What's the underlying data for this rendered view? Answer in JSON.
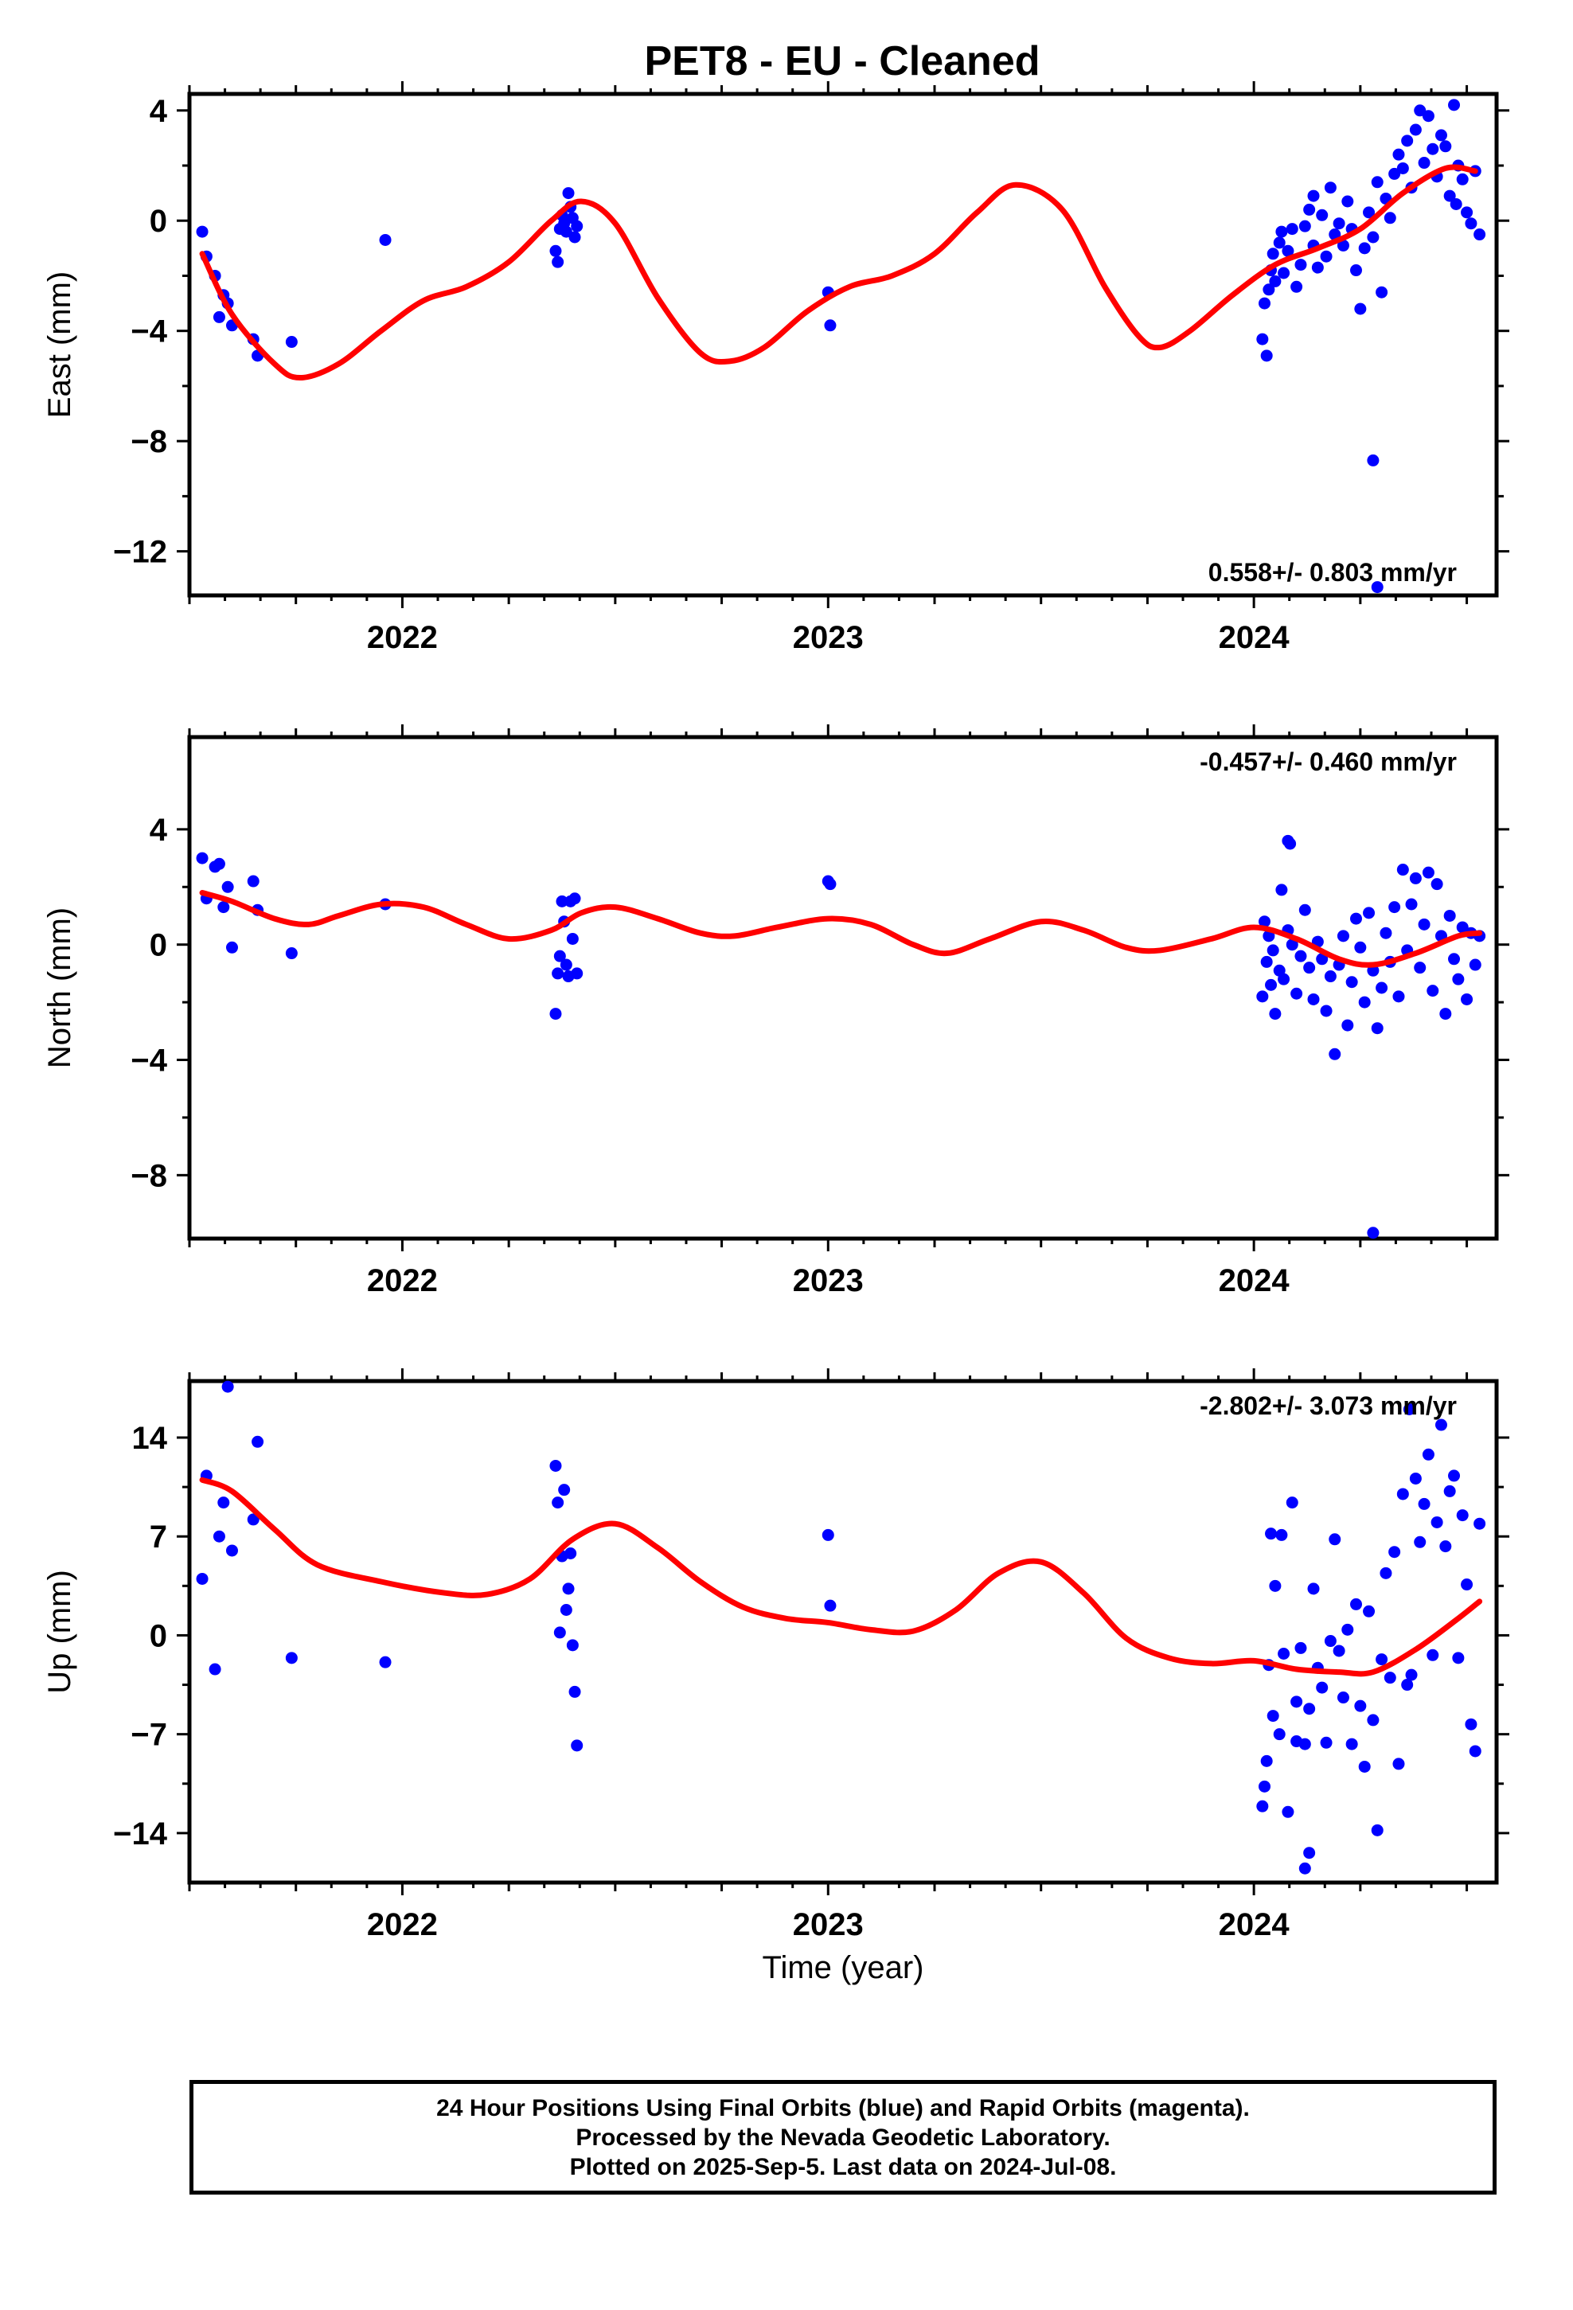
{
  "colors": {
    "points": "#0000ff",
    "model": "#ff0000",
    "axes": "#000000"
  },
  "caption": {
    "line1": "24 Hour Positions Using Final Orbits (blue) and Rapid Orbits (magenta).",
    "line2": "Processed by the Nevada Geodetic Laboratory.",
    "line3": "Plotted on 2025-Sep-5. Last data on 2024-Jul-08."
  },
  "chart_data": [
    {
      "type": "scatter",
      "title": "PET8  - EU - Cleaned",
      "ylabel": "East (mm)",
      "xlabel": "",
      "xlim": [
        2021.5,
        2024.57
      ],
      "ylim": [
        -13.6,
        4.6
      ],
      "yticks": [
        "4",
        "0",
        "-4",
        "-8",
        "-12"
      ],
      "xticks": [
        "2022",
        "2023",
        "2024"
      ],
      "annotation": "0.558+/- 0.803 mm/yr",
      "series": [
        {
          "points": {
            "x": [
              2021.53,
              2021.54,
              2021.56,
              2021.57,
              2021.58,
              2021.59,
              2021.6,
              2021.65,
              2021.66,
              2021.74,
              2021.96,
              2022.36,
              2022.365,
              2022.37,
              2022.375,
              2022.38,
              2022.385,
              2022.39,
              2022.395,
              2022.4,
              2022.405,
              2022.41,
              2023.0,
              2023.005,
              2024.02,
              2024.025,
              2024.03,
              2024.035,
              2024.04,
              2024.045,
              2024.05,
              2024.06,
              2024.065,
              2024.07,
              2024.08,
              2024.09,
              2024.1,
              2024.11,
              2024.12,
              2024.13,
              2024.14,
              2024.15,
              2024.16,
              2024.17,
              2024.18,
              2024.19,
              2024.2,
              2024.21,
              2024.22,
              2024.23,
              2024.24,
              2024.25,
              2024.26,
              2024.27,
              2024.28,
              2024.29,
              2024.3,
              2024.31,
              2024.32,
              2024.33,
              2024.34,
              2024.35,
              2024.36,
              2024.37,
              2024.38,
              2024.39,
              2024.4,
              2024.41,
              2024.42,
              2024.43,
              2024.44,
              2024.45,
              2024.46,
              2024.47,
              2024.48,
              2024.49,
              2024.5,
              2024.51,
              2024.52,
              2024.53,
              2024.14,
              2024.28,
              2024.29,
              2024.475
            ],
            "y": [
              -0.4,
              -1.3,
              -2.0,
              -3.5,
              -2.7,
              -3.0,
              -3.8,
              -4.3,
              -4.9,
              -4.4,
              -0.7,
              -1.1,
              -1.5,
              -0.3,
              0.2,
              -0.1,
              -0.4,
              1.0,
              0.5,
              0.1,
              -0.6,
              -0.2,
              -2.6,
              -3.8,
              -4.3,
              -3.0,
              -4.9,
              -2.5,
              -1.8,
              -1.2,
              -2.2,
              -0.8,
              -0.4,
              -1.9,
              -1.1,
              -0.3,
              -2.4,
              -1.6,
              -0.2,
              0.4,
              -0.9,
              -1.7,
              0.2,
              -1.3,
              1.2,
              -0.5,
              -0.1,
              -0.9,
              0.7,
              -0.3,
              -1.8,
              -3.2,
              -1.0,
              0.3,
              -0.6,
              1.4,
              -2.6,
              0.8,
              0.1,
              1.7,
              2.4,
              1.9,
              2.9,
              1.2,
              3.3,
              4.0,
              2.1,
              3.8,
              2.6,
              1.6,
              3.1,
              2.7,
              0.9,
              4.2,
              2.0,
              1.5,
              0.3,
              -0.1,
              1.8,
              -0.5,
              0.9,
              -8.7,
              -13.3,
              0.6
            ]
          }
        },
        {
          "model": {
            "x": [
              2021.53,
              2021.6,
              2021.7,
              2021.76,
              2021.85,
              2021.95,
              2022.05,
              2022.15,
              2022.25,
              2022.35,
              2022.42,
              2022.5,
              2022.6,
              2022.7,
              2022.77,
              2022.85,
              2022.95,
              2023.05,
              2023.15,
              2023.25,
              2023.35,
              2023.44,
              2023.55,
              2023.65,
              2023.73,
              2023.78,
              2023.85,
              2023.95,
              2024.05,
              2024.15,
              2024.25,
              2024.35,
              2024.45,
              2024.52
            ],
            "y": [
              -1.2,
              -3.4,
              -5.2,
              -5.7,
              -5.2,
              -4.0,
              -2.9,
              -2.4,
              -1.5,
              0.0,
              0.7,
              -0.1,
              -2.8,
              -4.8,
              -5.1,
              -4.6,
              -3.3,
              -2.4,
              -2.0,
              -1.2,
              0.3,
              1.3,
              0.4,
              -2.4,
              -4.2,
              -4.6,
              -4.0,
              -2.7,
              -1.6,
              -1.0,
              -0.3,
              1.0,
              1.9,
              1.8
            ]
          }
        }
      ]
    },
    {
      "type": "scatter",
      "title": "",
      "ylabel": "North (mm)",
      "xlabel": "",
      "xlim": [
        2021.5,
        2024.57
      ],
      "ylim": [
        -10.2,
        7.2
      ],
      "yticks": [
        "4",
        "0",
        "-4",
        "-8"
      ],
      "xticks": [
        "2022",
        "2023",
        "2024"
      ],
      "annotation": "-0.457+/- 0.460 mm/yr",
      "series": [
        {
          "points": {
            "x": [
              2021.53,
              2021.54,
              2021.56,
              2021.57,
              2021.58,
              2021.59,
              2021.6,
              2021.65,
              2021.66,
              2021.74,
              2021.96,
              2022.36,
              2022.365,
              2022.37,
              2022.375,
              2022.38,
              2022.385,
              2022.39,
              2022.395,
              2022.4,
              2022.405,
              2022.41,
              2023.0,
              2023.005,
              2024.02,
              2024.025,
              2024.03,
              2024.035,
              2024.04,
              2024.045,
              2024.05,
              2024.06,
              2024.065,
              2024.07,
              2024.08,
              2024.09,
              2024.1,
              2024.11,
              2024.12,
              2024.13,
              2024.14,
              2024.15,
              2024.16,
              2024.17,
              2024.18,
              2024.19,
              2024.2,
              2024.21,
              2024.22,
              2024.23,
              2024.24,
              2024.25,
              2024.26,
              2024.27,
              2024.28,
              2024.29,
              2024.3,
              2024.31,
              2024.32,
              2024.33,
              2024.34,
              2024.35,
              2024.36,
              2024.37,
              2024.38,
              2024.39,
              2024.4,
              2024.41,
              2024.42,
              2024.43,
              2024.44,
              2024.45,
              2024.46,
              2024.47,
              2024.48,
              2024.49,
              2024.5,
              2024.51,
              2024.52,
              2024.53,
              2024.08,
              2024.28,
              2024.085
            ],
            "y": [
              3.0,
              1.6,
              2.7,
              2.8,
              1.3,
              2.0,
              -0.1,
              2.2,
              1.2,
              -0.3,
              1.4,
              -2.4,
              -1.0,
              -0.4,
              1.5,
              0.8,
              -0.7,
              -1.1,
              1.5,
              0.2,
              1.6,
              -1.0,
              2.2,
              2.1,
              -1.8,
              0.8,
              -0.6,
              0.3,
              -1.4,
              -0.2,
              -2.4,
              -0.9,
              1.9,
              -1.2,
              0.5,
              0.0,
              -1.7,
              -0.4,
              1.2,
              -0.8,
              -1.9,
              0.1,
              -0.5,
              -2.3,
              -1.1,
              -3.8,
              -0.7,
              0.3,
              -2.8,
              -1.3,
              0.9,
              -0.1,
              -2.0,
              1.1,
              -0.9,
              -2.9,
              -1.5,
              0.4,
              -0.6,
              1.3,
              -1.8,
              2.6,
              -0.2,
              1.4,
              2.3,
              -0.8,
              0.7,
              2.5,
              -1.6,
              2.1,
              0.3,
              -2.4,
              1.0,
              -0.5,
              -1.2,
              0.6,
              -1.9,
              0.4,
              -0.7,
              0.3,
              3.6,
              -10.0,
              3.5
            ]
          }
        },
        {
          "model": {
            "x": [
              2021.53,
              2021.6,
              2021.7,
              2021.78,
              2021.85,
              2021.95,
              2022.05,
              2022.15,
              2022.25,
              2022.35,
              2022.42,
              2022.5,
              2022.6,
              2022.7,
              2022.78,
              2022.88,
              2023.0,
              2023.1,
              2023.2,
              2023.28,
              2023.38,
              2023.5,
              2023.6,
              2023.7,
              2023.78,
              2023.9,
              2024.0,
              2024.1,
              2024.2,
              2024.28,
              2024.38,
              2024.48,
              2024.53
            ],
            "y": [
              1.8,
              1.5,
              0.9,
              0.7,
              1.0,
              1.4,
              1.3,
              0.7,
              0.2,
              0.5,
              1.1,
              1.3,
              0.9,
              0.4,
              0.3,
              0.6,
              0.9,
              0.7,
              0.0,
              -0.3,
              0.2,
              0.8,
              0.5,
              -0.1,
              -0.2,
              0.2,
              0.6,
              0.2,
              -0.5,
              -0.7,
              -0.3,
              0.3,
              0.4
            ]
          }
        }
      ]
    },
    {
      "type": "scatter",
      "title": "",
      "ylabel": "Up (mm)",
      "xlabel": "Time (year)",
      "xlim": [
        2021.5,
        2024.57
      ],
      "ylim": [
        -17.5,
        18.0
      ],
      "yticks": [
        "14",
        "7",
        "0",
        "-7",
        "-14"
      ],
      "xticks": [
        "2022",
        "2023",
        "2024"
      ],
      "annotation": "-2.802+/- 3.073 mm/yr",
      "series": [
        {
          "points": {
            "x": [
              2021.53,
              2021.54,
              2021.56,
              2021.57,
              2021.58,
              2021.59,
              2021.6,
              2021.65,
              2021.66,
              2021.74,
              2021.96,
              2022.36,
              2022.365,
              2022.37,
              2022.375,
              2022.38,
              2022.385,
              2022.39,
              2022.395,
              2022.4,
              2022.405,
              2022.41,
              2023.0,
              2023.005,
              2024.02,
              2024.025,
              2024.03,
              2024.035,
              2024.04,
              2024.045,
              2024.05,
              2024.06,
              2024.065,
              2024.07,
              2024.08,
              2024.09,
              2024.1,
              2024.11,
              2024.12,
              2024.13,
              2024.14,
              2024.15,
              2024.16,
              2024.17,
              2024.18,
              2024.19,
              2024.2,
              2024.21,
              2024.22,
              2024.23,
              2024.24,
              2024.25,
              2024.26,
              2024.27,
              2024.28,
              2024.29,
              2024.3,
              2024.31,
              2024.32,
              2024.33,
              2024.34,
              2024.35,
              2024.36,
              2024.37,
              2024.38,
              2024.39,
              2024.4,
              2024.41,
              2024.42,
              2024.43,
              2024.44,
              2024.45,
              2024.46,
              2024.47,
              2024.48,
              2024.49,
              2024.5,
              2024.51,
              2024.52,
              2024.53,
              2024.12,
              2024.13,
              2024.1,
              2024.365
            ],
            "y": [
              4.0,
              11.3,
              -2.4,
              7.0,
              9.4,
              17.6,
              6.0,
              8.2,
              13.7,
              -1.6,
              -1.9,
              12.0,
              9.4,
              0.2,
              5.6,
              10.3,
              1.8,
              3.3,
              5.8,
              -0.7,
              -4.0,
              -7.8,
              7.1,
              2.1,
              -12.1,
              -10.7,
              -8.9,
              -2.1,
              7.2,
              -5.7,
              3.5,
              -7.0,
              7.1,
              -1.3,
              -12.5,
              9.4,
              -4.7,
              -0.9,
              -7.7,
              -5.2,
              3.3,
              -2.3,
              -3.7,
              -7.6,
              -0.4,
              6.8,
              -1.1,
              -4.4,
              0.4,
              -7.7,
              2.2,
              -5.0,
              -9.3,
              1.7,
              -6.0,
              -13.8,
              -1.7,
              4.4,
              -3.0,
              5.9,
              -9.1,
              10.0,
              -3.5,
              -2.8,
              11.1,
              6.6,
              9.3,
              12.8,
              -1.4,
              8.0,
              14.9,
              6.3,
              10.2,
              11.3,
              -1.6,
              8.5,
              3.6,
              -6.3,
              -8.2,
              7.9,
              -16.5,
              -15.4,
              -7.5,
              16.0
            ]
          }
        },
        {
          "model": {
            "x": [
              2021.53,
              2021.6,
              2021.7,
              2021.8,
              2021.95,
              2022.1,
              2022.2,
              2022.3,
              2022.4,
              2022.5,
              2022.6,
              2022.7,
              2022.8,
              2022.9,
              2023.0,
              2023.1,
              2023.2,
              2023.3,
              2023.4,
              2023.5,
              2023.6,
              2023.7,
              2023.8,
              2023.9,
              2024.0,
              2024.1,
              2024.2,
              2024.28,
              2024.38,
              2024.48,
              2024.53
            ],
            "y": [
              11.0,
              10.2,
              7.5,
              5.0,
              3.8,
              3.0,
              2.9,
              4.0,
              6.8,
              7.9,
              6.2,
              3.8,
              2.0,
              1.2,
              0.9,
              0.4,
              0.3,
              1.8,
              4.4,
              5.2,
              3.0,
              -0.2,
              -1.6,
              -2.0,
              -1.8,
              -2.4,
              -2.6,
              -2.6,
              -1.0,
              1.2,
              2.4
            ]
          }
        }
      ]
    }
  ]
}
